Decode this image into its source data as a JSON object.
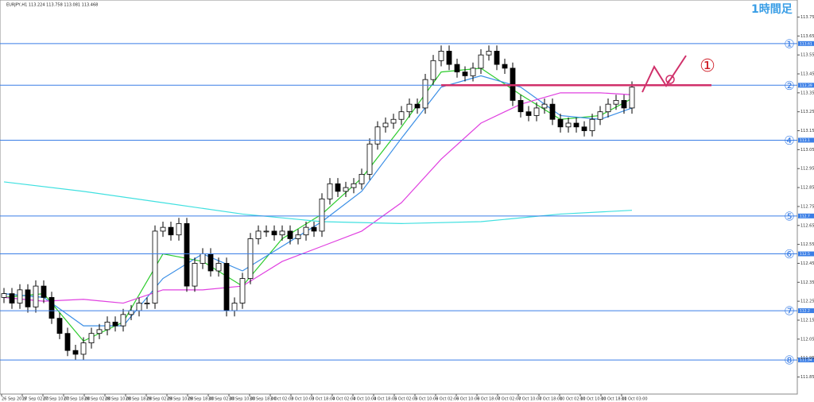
{
  "chart_data": {
    "type": "candlestick",
    "title": "EURJPY,H1  113.224 113.758 113.081 113.468",
    "timeframe_label": "1時間足",
    "ylim": [
      111.76,
      113.84
    ],
    "yticks": [
      111.85,
      111.95,
      112.05,
      112.15,
      112.25,
      112.35,
      112.45,
      112.55,
      112.65,
      112.75,
      112.85,
      112.95,
      113.05,
      113.15,
      113.25,
      113.35,
      113.45,
      113.55,
      113.65,
      113.75
    ],
    "x_labels": [
      "26 Sep 2018",
      "27 Sep 02:00",
      "27 Sep 10:00",
      "27 Sep 18:00",
      "28 Sep 02:00",
      "28 Sep 10:00",
      "28 Sep 18:00",
      "29 Sep 02:00",
      "29 Sep 10:00",
      "29 Sep 18:00",
      "30 Sep 02:00",
      "30 Sep 10:00",
      "30 Sep 18:00",
      "3 Oct 02:00",
      "3 Oct 10:00",
      "3 Oct 18:00",
      "4 Oct 02:00",
      "4 Oct 10:00",
      "4 Oct 18:00",
      "5 Oct 02:00",
      "5 Oct 10:00",
      "6 Oct 02:00",
      "6 Oct 10:00",
      "6 Oct 18:00",
      "7 Oct 02:00",
      "7 Oct 10:00",
      "7 Oct 18:00",
      "10 Oct 02:00",
      "10 Oct 10:00",
      "10 Oct 18:00",
      "11 Oct 03:00"
    ],
    "open": [
      112.27,
      112.29,
      112.24,
      112.31,
      112.22,
      112.33,
      112.27,
      112.16,
      112.08,
      111.99,
      111.97,
      112.03,
      112.08,
      112.1,
      112.14,
      112.12,
      112.18,
      112.2,
      112.24,
      112.24,
      112.62,
      112.64,
      112.6,
      112.66,
      112.33,
      112.45,
      112.5,
      112.41,
      112.45,
      112.2,
      112.24,
      112.37,
      112.58,
      112.62,
      112.62,
      112.6,
      112.62,
      112.58,
      112.6,
      112.64,
      112.62,
      112.79,
      112.87,
      112.83,
      112.85,
      112.87,
      112.92,
      113.08,
      113.17,
      113.19,
      113.21,
      113.25,
      113.29,
      113.27,
      113.42,
      113.52,
      113.57,
      113.5,
      113.46,
      113.44,
      113.48,
      113.55,
      113.57,
      113.5,
      113.48,
      113.31,
      113.25,
      113.23,
      113.27,
      113.29,
      113.21,
      113.17,
      113.19,
      113.17,
      113.15,
      113.21,
      113.25,
      113.29,
      113.31,
      113.27
    ],
    "close": [
      112.29,
      112.24,
      112.31,
      112.22,
      112.33,
      112.27,
      112.16,
      112.08,
      111.99,
      111.97,
      112.03,
      112.08,
      112.1,
      112.14,
      112.12,
      112.18,
      112.2,
      112.24,
      112.24,
      112.62,
      112.64,
      112.6,
      112.66,
      112.33,
      112.45,
      112.5,
      112.41,
      112.45,
      112.2,
      112.24,
      112.37,
      112.58,
      112.62,
      112.62,
      112.6,
      112.62,
      112.58,
      112.6,
      112.64,
      112.62,
      112.79,
      112.87,
      112.83,
      112.85,
      112.87,
      112.92,
      113.08,
      113.17,
      113.19,
      113.21,
      113.25,
      113.29,
      113.27,
      113.42,
      113.52,
      113.57,
      113.5,
      113.46,
      113.44,
      113.48,
      113.55,
      113.57,
      113.5,
      113.48,
      113.31,
      113.25,
      113.23,
      113.27,
      113.29,
      113.21,
      113.17,
      113.19,
      113.17,
      113.15,
      113.21,
      113.25,
      113.29,
      113.31,
      113.27,
      113.38
    ],
    "high": [
      112.32,
      112.32,
      112.34,
      112.34,
      112.36,
      112.36,
      112.3,
      112.19,
      112.11,
      112.02,
      112.06,
      112.11,
      112.13,
      112.17,
      112.17,
      112.21,
      112.23,
      112.27,
      112.27,
      112.65,
      112.67,
      112.67,
      112.69,
      112.69,
      112.48,
      112.53,
      112.53,
      112.48,
      112.48,
      112.27,
      112.4,
      112.61,
      112.65,
      112.65,
      112.65,
      112.65,
      112.65,
      112.63,
      112.67,
      112.67,
      112.82,
      112.9,
      112.9,
      112.88,
      112.9,
      112.95,
      113.11,
      113.2,
      113.22,
      113.24,
      113.28,
      113.32,
      113.32,
      113.45,
      113.55,
      113.6,
      113.6,
      113.53,
      113.49,
      113.51,
      113.58,
      113.6,
      113.6,
      113.53,
      113.51,
      113.34,
      113.28,
      113.3,
      113.32,
      113.32,
      113.24,
      113.22,
      113.22,
      113.2,
      113.24,
      113.28,
      113.32,
      113.34,
      113.34,
      113.41
    ],
    "low": [
      112.24,
      112.21,
      112.21,
      112.19,
      112.19,
      112.24,
      112.13,
      112.05,
      111.96,
      111.94,
      111.94,
      112.0,
      112.05,
      112.07,
      112.09,
      112.09,
      112.15,
      112.17,
      112.21,
      112.21,
      112.59,
      112.57,
      112.57,
      112.3,
      112.3,
      112.42,
      112.38,
      112.38,
      112.17,
      112.17,
      112.21,
      112.34,
      112.55,
      112.59,
      112.57,
      112.57,
      112.55,
      112.55,
      112.57,
      112.59,
      112.59,
      112.76,
      112.8,
      112.8,
      112.82,
      112.84,
      112.89,
      113.05,
      113.14,
      113.16,
      113.18,
      113.22,
      113.24,
      113.24,
      113.39,
      113.49,
      113.47,
      113.43,
      113.41,
      113.41,
      113.45,
      113.52,
      113.47,
      113.45,
      113.28,
      113.22,
      113.2,
      113.2,
      113.24,
      113.18,
      113.14,
      113.14,
      113.14,
      113.12,
      113.12,
      113.18,
      113.22,
      113.26,
      113.24,
      113.24
    ],
    "moving_averages": [
      {
        "color": "#2ecc2e",
        "x": [
          0,
          5,
          10,
          15,
          20,
          25,
          30,
          35,
          40,
          45,
          50,
          55,
          60,
          65,
          70,
          75,
          79
        ],
        "values": [
          112.27,
          112.29,
          112.04,
          112.14,
          112.5,
          112.46,
          112.33,
          112.58,
          112.71,
          112.9,
          113.17,
          113.46,
          113.48,
          113.34,
          113.21,
          113.23,
          113.32
        ]
      },
      {
        "color": "#3a8ee6",
        "x": [
          0,
          5,
          10,
          15,
          20,
          25,
          30,
          35,
          40,
          45,
          50,
          55,
          60,
          65,
          70,
          75,
          79
        ],
        "values": [
          112.29,
          112.27,
          112.12,
          112.12,
          112.37,
          112.5,
          112.41,
          112.54,
          112.67,
          112.83,
          113.11,
          113.38,
          113.44,
          113.38,
          113.23,
          113.21,
          113.27
        ]
      },
      {
        "color": "#e040e0",
        "x": [
          0,
          5,
          10,
          15,
          20,
          25,
          30,
          35,
          40,
          45,
          50,
          55,
          60,
          65,
          70,
          75,
          79
        ],
        "values": [
          112.27,
          112.25,
          112.26,
          112.24,
          112.31,
          112.31,
          112.33,
          112.46,
          112.54,
          112.62,
          112.77,
          113.0,
          113.19,
          113.29,
          113.35,
          113.35,
          113.34
        ]
      },
      {
        "color": "#40e0e0",
        "x": [
          0,
          10,
          20,
          30,
          40,
          50,
          60,
          70,
          79
        ],
        "values": [
          112.88,
          112.83,
          112.77,
          112.71,
          112.67,
          112.66,
          112.67,
          112.71,
          112.73
        ]
      }
    ],
    "levels": [
      {
        "label": "①",
        "value": 113.61
      },
      {
        "label": "②",
        "value": 113.39
      },
      {
        "label": "④",
        "value": 113.1
      },
      {
        "label": "⑤",
        "value": 112.7
      },
      {
        "label": "⑥",
        "value": 112.5
      },
      {
        "label": "⑦",
        "value": 112.2
      },
      {
        "label": "⑧",
        "value": 111.94
      }
    ],
    "highlight": {
      "value": 113.39,
      "color": "#d0306a",
      "from": 55,
      "to": 89
    },
    "annotation": {
      "label": "①"
    }
  }
}
